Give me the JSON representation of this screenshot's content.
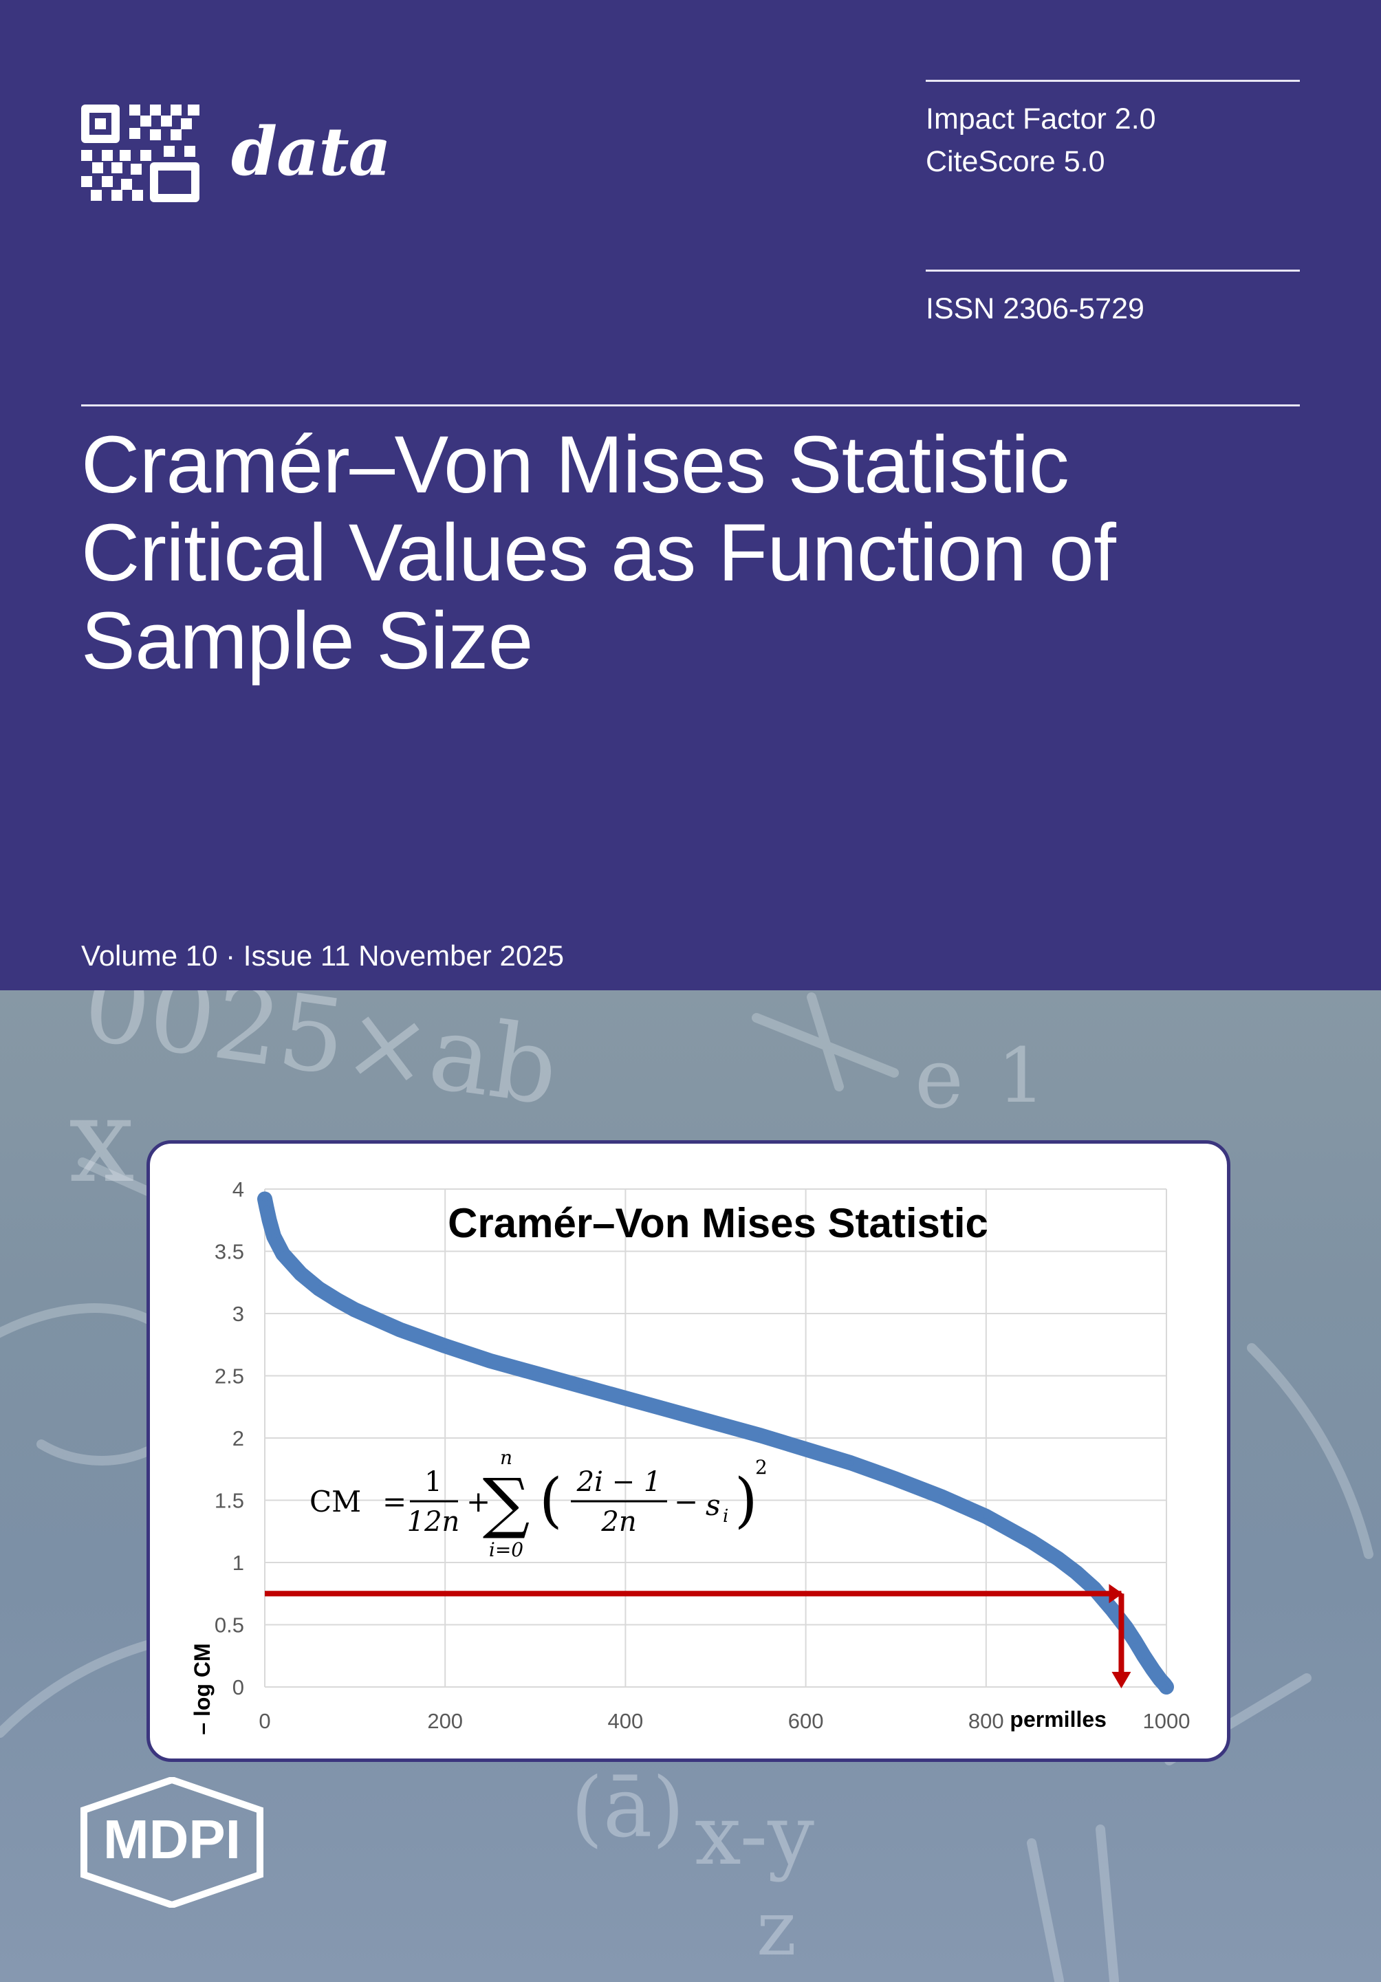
{
  "journal": {
    "name": "data",
    "logo_icon": "qr-code-icon"
  },
  "metrics": {
    "impact_factor": "Impact Factor 2.0",
    "citescore": "CiteScore 5.0",
    "issn": "ISSN 2306-5729"
  },
  "article": {
    "title_lines": [
      "Cramér–Von Mises Statistic",
      "Critical Values as Function of",
      "Sample Size"
    ]
  },
  "issue": {
    "text": "Volume 10 · Issue 11 November 2025"
  },
  "publisher": {
    "name": "MDPI"
  },
  "background_text": [
    "0025×ab",
    "x",
    "(ā)",
    "x-y",
    "z",
    "e",
    "1"
  ],
  "chart_data": {
    "type": "line",
    "title": "Cramér–Von Mises Statistic",
    "xlabel": "permilles",
    "ylabel": "– log CM",
    "xlim": [
      0,
      1000
    ],
    "ylim": [
      0,
      4
    ],
    "x_ticks": [
      "0",
      "200",
      "400",
      "600",
      "800",
      "1000"
    ],
    "y_ticks": [
      "0",
      "0.5",
      "1",
      "1.5",
      "2",
      "2.5",
      "3",
      "3.5",
      "4"
    ],
    "grid": true,
    "series": [
      {
        "color": "#4f7fbd",
        "x": [
          0,
          2,
          5,
          10,
          20,
          40,
          60,
          80,
          100,
          150,
          200,
          250,
          300,
          350,
          400,
          450,
          500,
          550,
          600,
          650,
          700,
          750,
          800,
          850,
          880,
          900,
          920,
          940,
          955,
          965,
          975,
          985,
          993,
          998,
          1000
        ],
        "y": [
          3.92,
          3.85,
          3.75,
          3.62,
          3.48,
          3.32,
          3.2,
          3.11,
          3.03,
          2.87,
          2.74,
          2.62,
          2.52,
          2.42,
          2.32,
          2.22,
          2.12,
          2.02,
          1.91,
          1.8,
          1.67,
          1.53,
          1.37,
          1.17,
          1.03,
          0.92,
          0.79,
          0.62,
          0.48,
          0.37,
          0.25,
          0.14,
          0.06,
          0.02,
          0.0
        ]
      }
    ],
    "annotation": {
      "color": "#c00000",
      "marker_x": 950,
      "marker_y": 0.75
    },
    "formula": {
      "lhs": "CM",
      "num1": "1",
      "den1": "12n",
      "sum_top": "n",
      "sum_bottom": "i=0",
      "num2": "2i − 1",
      "den2": "2n",
      "term": "s",
      "sub": "i",
      "exp": "2"
    }
  }
}
